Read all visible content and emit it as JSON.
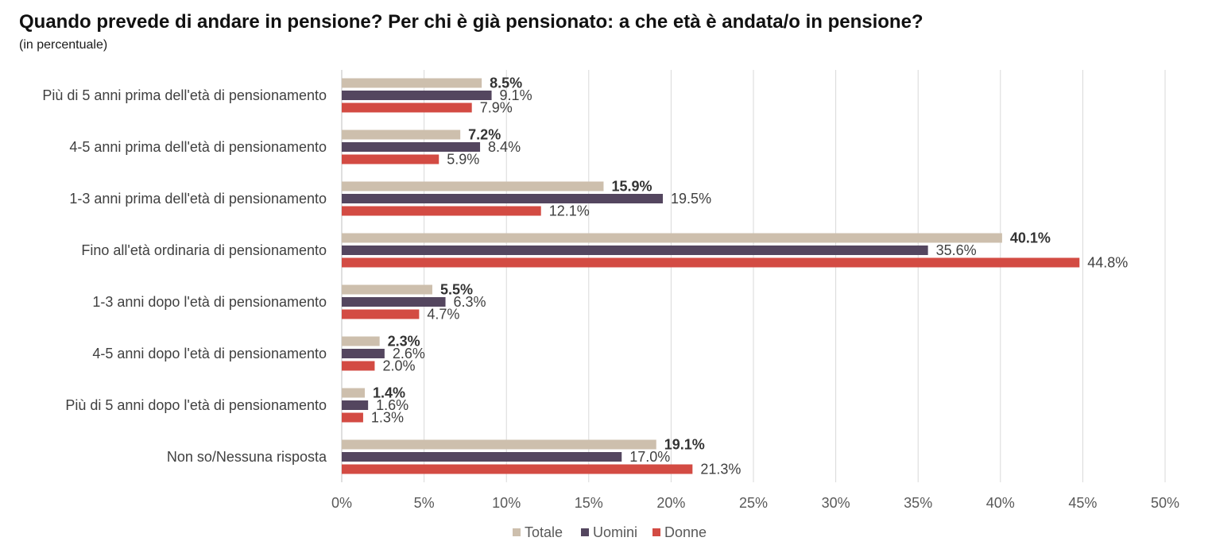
{
  "chart_data": {
    "type": "bar",
    "orientation": "horizontal",
    "title": "Quando prevede di andare in pensione? Per chi è già pensionato: a che età è andata/o in pensione?",
    "subtitle": "(in percentuale)",
    "categories": [
      "Più di 5 anni prima dell'età di pensionamento",
      "4-5 anni prima dell'età di pensionamento",
      "1-3 anni prima dell'età di pensionamento",
      "Fino all'età ordinaria di pensionamento",
      "1-3 anni dopo l'età di pensionamento",
      "4-5 anni dopo l'età di pensionamento",
      "Più di 5 anni dopo l'età di pensionamento",
      "Non so/Nessuna risposta"
    ],
    "series": [
      {
        "name": "Totale",
        "color": "#cdbfad",
        "bold_labels": true,
        "values": [
          8.5,
          7.2,
          15.9,
          40.1,
          5.5,
          2.3,
          1.4,
          19.1
        ],
        "labels": [
          "8.5%",
          "7.2%",
          "15.9%",
          "40.1%",
          "5.5%",
          "2.3%",
          "1.4%",
          "19.1%"
        ]
      },
      {
        "name": "Uomini",
        "color": "#54465f",
        "bold_labels": false,
        "values": [
          9.1,
          8.4,
          19.5,
          35.6,
          6.3,
          2.6,
          1.6,
          17.0
        ],
        "labels": [
          "9.1%",
          "8.4%",
          "19.5%",
          "35.6%",
          "6.3%",
          "2.6%",
          "1.6%",
          "17.0%"
        ]
      },
      {
        "name": "Donne",
        "color": "#d34b43",
        "bold_labels": false,
        "values": [
          7.9,
          5.9,
          12.1,
          44.8,
          4.7,
          2.0,
          1.3,
          21.3
        ],
        "labels": [
          "7.9%",
          "5.9%",
          "12.1%",
          "44.8%",
          "4.7%",
          "2.0%",
          "1.3%",
          "21.3%"
        ]
      }
    ],
    "xlim": [
      0,
      50
    ],
    "xticks": [
      0,
      5,
      10,
      15,
      20,
      25,
      30,
      35,
      40,
      45,
      50
    ],
    "xtick_labels": [
      "0%",
      "5%",
      "10%",
      "15%",
      "20%",
      "25%",
      "30%",
      "35%",
      "40%",
      "45%",
      "50%"
    ],
    "grid": true,
    "legend_position": "bottom-center",
    "xlabel": "",
    "ylabel": ""
  },
  "colors": {
    "grid": "#d9d9d9",
    "axis": "#bfbfbf"
  }
}
